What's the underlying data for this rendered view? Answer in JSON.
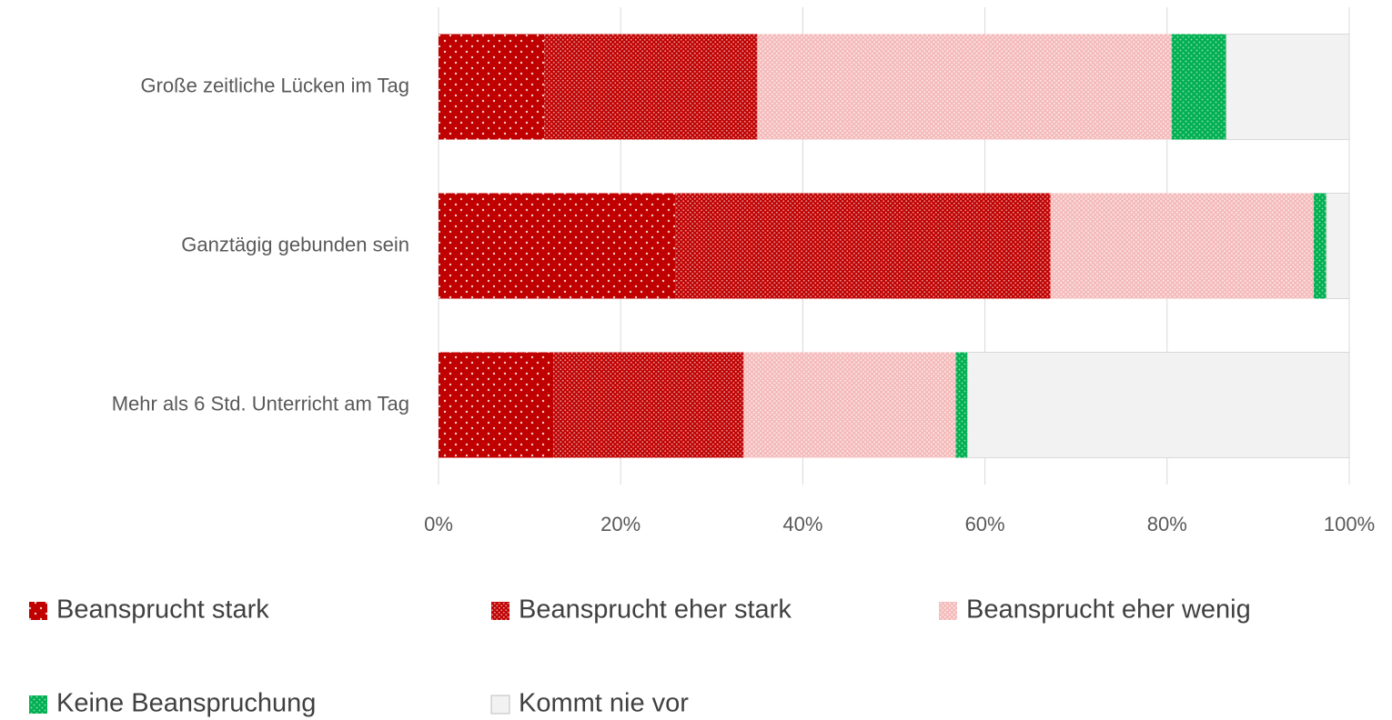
{
  "chart_data": {
    "type": "stacked_barh",
    "categories": [
      "Große zeitliche Lücken im Tag",
      "Ganztägig gebunden sein",
      "Mehr als 6 Std. Unterricht am Tag"
    ],
    "series": [
      {
        "name": "Beansprucht stark",
        "color": "#c00000",
        "values": [
          11.6,
          26.0,
          12.6
        ]
      },
      {
        "name": "Beansprucht eher stark",
        "color": "#c00000",
        "values": [
          23.4,
          41.2,
          20.9
        ]
      },
      {
        "name": "Beansprucht eher wenig",
        "color": "#f4b8b8",
        "values": [
          45.5,
          28.9,
          23.3
        ]
      },
      {
        "name": "Keine Beanspruchung",
        "color": "#00b050",
        "values": [
          6.0,
          1.4,
          1.3
        ]
      },
      {
        "name": "Kommt nie vor",
        "color": "#f2f2f2",
        "values": [
          13.5,
          2.5,
          41.9
        ]
      }
    ],
    "xlim": [
      0,
      100
    ],
    "xticks": [
      {
        "value": 0,
        "label": "0%"
      },
      {
        "value": 20,
        "label": "20%"
      },
      {
        "value": 40,
        "label": "40%"
      },
      {
        "value": 60,
        "label": "60%"
      },
      {
        "value": 80,
        "label": "80%"
      },
      {
        "value": 100,
        "label": "100%"
      }
    ],
    "grid": true,
    "legend": "bottom"
  }
}
